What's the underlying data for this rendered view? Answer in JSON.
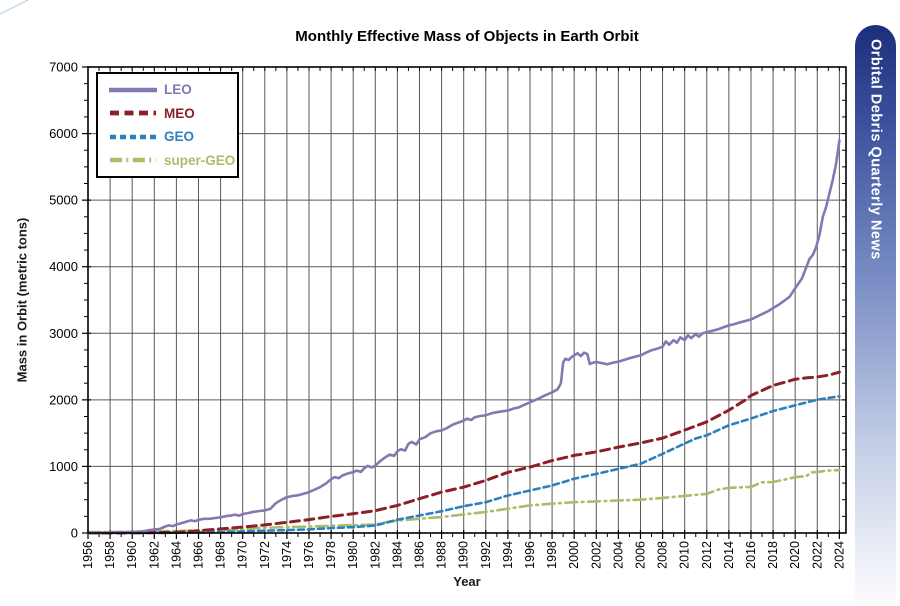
{
  "banner": {
    "text": "Orbital Debris Quarterly News",
    "text_color": "#ffffff",
    "gradient_top": "#1c2e7b",
    "gradient_upper": "#3a4f9b",
    "gradient_mid": "#7c90c6",
    "gradient_lower": "#c3cde6",
    "gradient_bottom": "#fdfdfe"
  },
  "decoration": {
    "corner_line_color": "#c2d9ec"
  },
  "chart_data": {
    "type": "line",
    "title": "Monthly Effective Mass of Objects in Earth Orbit",
    "xlabel": "Year",
    "ylabel": "Mass in Orbit (metric tons)",
    "xlim": [
      1956,
      2024.6
    ],
    "ylim": [
      0,
      7000
    ],
    "grid": {
      "on": true,
      "color": "#595959",
      "vertical_every_years": 2,
      "horizontal_every": 1000
    },
    "axis_color": "#000000",
    "x_major_tick_step": 2,
    "x_minor_tick_step": 1,
    "y_major_tick_step": 1000,
    "y_minor_tick_step": 250,
    "x_tick_labels": [
      "1956",
      "1958",
      "1960",
      "1962",
      "1964",
      "1966",
      "1968",
      "1970",
      "1972",
      "1974",
      "1976",
      "1978",
      "1980",
      "1982",
      "1984",
      "1986",
      "1988",
      "1990",
      "1992",
      "1994",
      "1996",
      "1998",
      "2000",
      "2002",
      "2004",
      "2006",
      "2008",
      "2010",
      "2012",
      "2014",
      "2016",
      "2018",
      "2020",
      "2022",
      "2024"
    ],
    "y_tick_labels": [
      "0",
      "1000",
      "2000",
      "3000",
      "4000",
      "5000",
      "6000",
      "7000"
    ],
    "legend_position": "top-left",
    "series": [
      {
        "name": "LEO",
        "color": "#8478b2",
        "style": "solid",
        "dash": "",
        "width": 2.6,
        "points": [
          [
            1956,
            2
          ],
          [
            1957,
            4
          ],
          [
            1957.6,
            8
          ],
          [
            1958,
            10
          ],
          [
            1959,
            12
          ],
          [
            1960,
            16
          ],
          [
            1961,
            26
          ],
          [
            1961.5,
            42
          ],
          [
            1962,
            52
          ],
          [
            1962.5,
            62
          ],
          [
            1963,
            98
          ],
          [
            1963.3,
            114
          ],
          [
            1963.7,
            104
          ],
          [
            1964,
            128
          ],
          [
            1964.5,
            150
          ],
          [
            1965,
            174
          ],
          [
            1965.3,
            190
          ],
          [
            1965.7,
            178
          ],
          [
            1966,
            198
          ],
          [
            1966.5,
            214
          ],
          [
            1967,
            214
          ],
          [
            1967.5,
            226
          ],
          [
            1968,
            236
          ],
          [
            1968.5,
            254
          ],
          [
            1969,
            264
          ],
          [
            1969.3,
            276
          ],
          [
            1969.7,
            260
          ],
          [
            1970,
            284
          ],
          [
            1970.5,
            300
          ],
          [
            1971,
            318
          ],
          [
            1971.5,
            330
          ],
          [
            1972,
            340
          ],
          [
            1972.5,
            362
          ],
          [
            1973,
            448
          ],
          [
            1973.5,
            498
          ],
          [
            1974,
            538
          ],
          [
            1974.5,
            556
          ],
          [
            1975,
            566
          ],
          [
            1975.5,
            590
          ],
          [
            1976,
            614
          ],
          [
            1976.5,
            650
          ],
          [
            1977,
            688
          ],
          [
            1977.5,
            740
          ],
          [
            1978,
            808
          ],
          [
            1978.3,
            838
          ],
          [
            1978.7,
            824
          ],
          [
            1979,
            862
          ],
          [
            1979.5,
            894
          ],
          [
            1980,
            914
          ],
          [
            1980.3,
            938
          ],
          [
            1980.7,
            918
          ],
          [
            1981,
            972
          ],
          [
            1981.3,
            1008
          ],
          [
            1981.7,
            984
          ],
          [
            1982,
            1014
          ],
          [
            1982.5,
            1088
          ],
          [
            1983,
            1148
          ],
          [
            1983.3,
            1178
          ],
          [
            1983.7,
            1158
          ],
          [
            1984,
            1228
          ],
          [
            1984.3,
            1258
          ],
          [
            1984.7,
            1238
          ],
          [
            1985,
            1338
          ],
          [
            1985.3,
            1368
          ],
          [
            1985.7,
            1330
          ],
          [
            1986,
            1408
          ],
          [
            1986.5,
            1438
          ],
          [
            1987,
            1498
          ],
          [
            1987.5,
            1528
          ],
          [
            1988,
            1540
          ],
          [
            1988.5,
            1578
          ],
          [
            1989,
            1628
          ],
          [
            1989.5,
            1658
          ],
          [
            1990,
            1688
          ],
          [
            1990.3,
            1718
          ],
          [
            1990.7,
            1698
          ],
          [
            1991,
            1738
          ],
          [
            1991.5,
            1758
          ],
          [
            1992,
            1768
          ],
          [
            1992.5,
            1798
          ],
          [
            1993,
            1814
          ],
          [
            1993.5,
            1828
          ],
          [
            1994,
            1840
          ],
          [
            1994.5,
            1868
          ],
          [
            1995,
            1888
          ],
          [
            1995.5,
            1928
          ],
          [
            1996,
            1964
          ],
          [
            1996.5,
            2000
          ],
          [
            1997,
            2038
          ],
          [
            1997.5,
            2078
          ],
          [
            1998,
            2114
          ],
          [
            1998.5,
            2158
          ],
          [
            1998.8,
            2248
          ],
          [
            1999,
            2556
          ],
          [
            1999.2,
            2618
          ],
          [
            1999.5,
            2598
          ],
          [
            1999.8,
            2648
          ],
          [
            2000,
            2668
          ],
          [
            2000.3,
            2700
          ],
          [
            2000.6,
            2658
          ],
          [
            2000.9,
            2708
          ],
          [
            2001.2,
            2688
          ],
          [
            2001.4,
            2538
          ],
          [
            2001.7,
            2558
          ],
          [
            2002,
            2568
          ],
          [
            2002.5,
            2552
          ],
          [
            2003,
            2534
          ],
          [
            2003.5,
            2558
          ],
          [
            2004,
            2574
          ],
          [
            2004.5,
            2598
          ],
          [
            2005,
            2624
          ],
          [
            2005.5,
            2648
          ],
          [
            2006,
            2668
          ],
          [
            2006.5,
            2708
          ],
          [
            2007,
            2744
          ],
          [
            2007.5,
            2768
          ],
          [
            2008,
            2798
          ],
          [
            2008.3,
            2878
          ],
          [
            2008.6,
            2828
          ],
          [
            2009,
            2898
          ],
          [
            2009.3,
            2858
          ],
          [
            2009.6,
            2938
          ],
          [
            2010,
            2898
          ],
          [
            2010.3,
            2968
          ],
          [
            2010.6,
            2928
          ],
          [
            2011,
            2988
          ],
          [
            2011.3,
            2948
          ],
          [
            2011.6,
            2998
          ],
          [
            2012,
            3018
          ],
          [
            2012.5,
            3038
          ],
          [
            2013,
            3058
          ],
          [
            2013.5,
            3088
          ],
          [
            2014,
            3118
          ],
          [
            2014.5,
            3138
          ],
          [
            2015,
            3164
          ],
          [
            2015.5,
            3184
          ],
          [
            2016,
            3208
          ],
          [
            2016.5,
            3248
          ],
          [
            2017,
            3288
          ],
          [
            2017.5,
            3328
          ],
          [
            2018,
            3378
          ],
          [
            2018.5,
            3428
          ],
          [
            2019,
            3488
          ],
          [
            2019.5,
            3548
          ],
          [
            2020,
            3678
          ],
          [
            2020.3,
            3748
          ],
          [
            2020.6,
            3818
          ],
          [
            2021,
            3988
          ],
          [
            2021.3,
            4118
          ],
          [
            2021.6,
            4178
          ],
          [
            2021.9,
            4298
          ],
          [
            2022.2,
            4478
          ],
          [
            2022.5,
            4748
          ],
          [
            2022.8,
            4898
          ],
          [
            2023.1,
            5098
          ],
          [
            2023.4,
            5298
          ],
          [
            2023.7,
            5548
          ],
          [
            2024,
            5898
          ]
        ]
      },
      {
        "name": "MEO",
        "color": "#8d1f28",
        "style": "dashed",
        "dash": "9,5.5",
        "width": 3,
        "points": [
          [
            1956,
            0
          ],
          [
            1958,
            0
          ],
          [
            1960,
            2
          ],
          [
            1962,
            6
          ],
          [
            1964,
            12
          ],
          [
            1966,
            35
          ],
          [
            1968,
            62
          ],
          [
            1970,
            88
          ],
          [
            1972,
            122
          ],
          [
            1974,
            160
          ],
          [
            1976,
            202
          ],
          [
            1978,
            250
          ],
          [
            1980,
            290
          ],
          [
            1982,
            335
          ],
          [
            1984,
            415
          ],
          [
            1986,
            515
          ],
          [
            1988,
            615
          ],
          [
            1990,
            690
          ],
          [
            1992,
            790
          ],
          [
            1994,
            912
          ],
          [
            1996,
            990
          ],
          [
            1998,
            1088
          ],
          [
            2000,
            1165
          ],
          [
            2002,
            1218
          ],
          [
            2004,
            1290
          ],
          [
            2006,
            1352
          ],
          [
            2008,
            1425
          ],
          [
            2010,
            1545
          ],
          [
            2012,
            1670
          ],
          [
            2014,
            1845
          ],
          [
            2015.5,
            2000
          ],
          [
            2016,
            2065
          ],
          [
            2018,
            2215
          ],
          [
            2020,
            2310
          ],
          [
            2021,
            2330
          ],
          [
            2022,
            2345
          ],
          [
            2023,
            2370
          ],
          [
            2024,
            2415
          ]
        ]
      },
      {
        "name": "GEO",
        "color": "#2e80bd",
        "style": "dashed",
        "dash": "6,4",
        "width": 2.6,
        "points": [
          [
            1956,
            0
          ],
          [
            1960,
            0
          ],
          [
            1963,
            2
          ],
          [
            1964,
            5
          ],
          [
            1966,
            9
          ],
          [
            1968,
            15
          ],
          [
            1970,
            24
          ],
          [
            1972,
            34
          ],
          [
            1974,
            44
          ],
          [
            1976,
            54
          ],
          [
            1978,
            74
          ],
          [
            1980,
            88
          ],
          [
            1982,
            112
          ],
          [
            1984,
            200
          ],
          [
            1986,
            263
          ],
          [
            1988,
            328
          ],
          [
            1990,
            403
          ],
          [
            1992,
            463
          ],
          [
            1994,
            564
          ],
          [
            1996,
            639
          ],
          [
            1998,
            714
          ],
          [
            2000,
            815
          ],
          [
            2002,
            888
          ],
          [
            2004,
            963
          ],
          [
            2006,
            1040
          ],
          [
            2008,
            1190
          ],
          [
            2010,
            1345
          ],
          [
            2011,
            1420
          ],
          [
            2012,
            1468
          ],
          [
            2014,
            1618
          ],
          [
            2016,
            1720
          ],
          [
            2018,
            1832
          ],
          [
            2020,
            1918
          ],
          [
            2022,
            2002
          ],
          [
            2024,
            2053
          ]
        ]
      },
      {
        "name": "super-GEO",
        "color": "#a8be6b",
        "style": "dash-dot",
        "dash": "12,4.5,1.8,4.5",
        "width": 2.6,
        "points": [
          [
            1956,
            12
          ],
          [
            1958,
            15
          ],
          [
            1960,
            18
          ],
          [
            1962,
            25
          ],
          [
            1964,
            30
          ],
          [
            1966,
            38
          ],
          [
            1968,
            45
          ],
          [
            1970,
            52
          ],
          [
            1971,
            70
          ],
          [
            1972,
            78
          ],
          [
            1974,
            88
          ],
          [
            1976,
            96
          ],
          [
            1978,
            108
          ],
          [
            1980,
            118
          ],
          [
            1982,
            126
          ],
          [
            1983,
            160
          ],
          [
            1984,
            186
          ],
          [
            1986,
            215
          ],
          [
            1988,
            240
          ],
          [
            1990,
            280
          ],
          [
            1992,
            315
          ],
          [
            1994,
            365
          ],
          [
            1996,
            415
          ],
          [
            1998,
            440
          ],
          [
            2000,
            463
          ],
          [
            2002,
            475
          ],
          [
            2004,
            488
          ],
          [
            2006,
            500
          ],
          [
            2008,
            528
          ],
          [
            2010,
            558
          ],
          [
            2012,
            588
          ],
          [
            2013,
            650
          ],
          [
            2014,
            678
          ],
          [
            2016,
            692
          ],
          [
            2017,
            762
          ],
          [
            2018,
            766
          ],
          [
            2019,
            800
          ],
          [
            2020,
            838
          ],
          [
            2021,
            855
          ],
          [
            2021.5,
            912
          ],
          [
            2022,
            918
          ],
          [
            2023,
            938
          ],
          [
            2024,
            945
          ]
        ]
      }
    ]
  }
}
